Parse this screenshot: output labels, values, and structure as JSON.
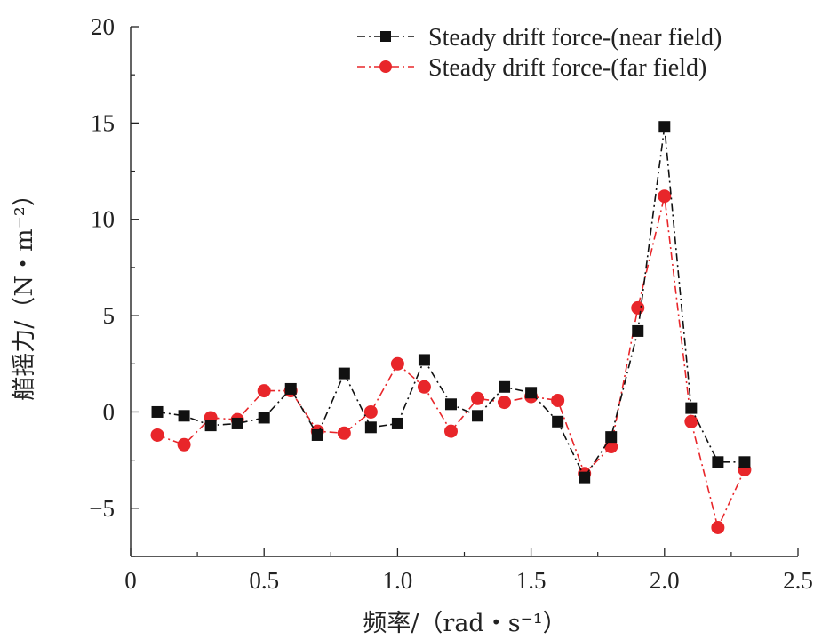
{
  "chart_data": {
    "type": "line",
    "title": "",
    "xlabel": "频率/（rad・s⁻¹）",
    "ylabel": "艏摇力/（N・m⁻²）",
    "xlim": [
      0,
      2.5
    ],
    "ylim": [
      -7.5,
      20
    ],
    "xticks": [
      0,
      0.5,
      1.0,
      1.5,
      2.0,
      2.5
    ],
    "xtick_labels": [
      "0",
      "0.5",
      "1.0",
      "1.5",
      "2.0",
      "2.5"
    ],
    "yticks": [
      -5,
      0,
      5,
      10,
      15,
      20
    ],
    "ytick_labels": [
      "−5",
      "0",
      "5",
      "10",
      "15",
      "20"
    ],
    "grid": false,
    "legend_position": "top-right",
    "x": [
      0.1,
      0.2,
      0.3,
      0.4,
      0.5,
      0.6,
      0.7,
      0.8,
      0.9,
      1.0,
      1.1,
      1.2,
      1.3,
      1.4,
      1.5,
      1.6,
      1.7,
      1.8,
      1.9,
      2.0,
      2.1,
      2.2,
      2.3
    ],
    "series": [
      {
        "name": "Steady drift  force-(near field)",
        "color": "#111111",
        "marker": "square",
        "line_style": "dash-dot",
        "values": [
          0.0,
          -0.2,
          -0.7,
          -0.6,
          -0.3,
          1.2,
          -1.2,
          2.0,
          -0.8,
          -0.6,
          2.7,
          0.4,
          -0.2,
          1.3,
          1.0,
          -0.5,
          -3.4,
          -1.3,
          4.2,
          14.8,
          0.2,
          -2.6,
          -2.6
        ]
      },
      {
        "name": "Steady drift  force-(far field)",
        "color": "#e8262a",
        "marker": "circle",
        "line_style": "dash-dot",
        "values": [
          -1.2,
          -1.7,
          -0.3,
          -0.4,
          1.1,
          1.1,
          -1.0,
          -1.1,
          0.0,
          2.5,
          1.3,
          -1.0,
          0.7,
          0.5,
          0.8,
          0.6,
          -3.2,
          -1.8,
          5.4,
          11.2,
          -0.5,
          -6.0,
          -3.0
        ]
      }
    ]
  }
}
